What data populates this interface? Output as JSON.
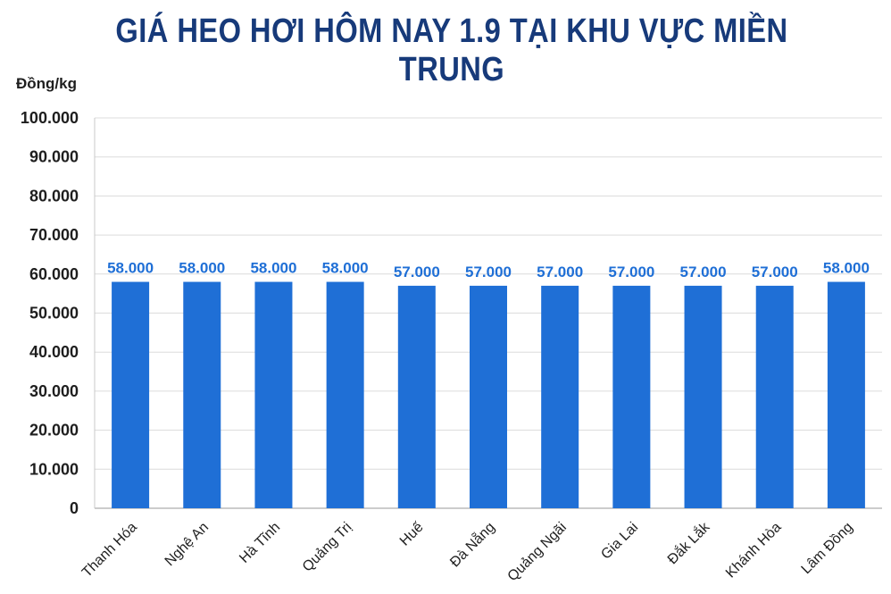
{
  "chart_data": {
    "type": "bar",
    "title": "GIÁ HEO HƠI HÔM NAY 1.9 TẠI KHU VỰC MIỀN TRUNG",
    "ylabel": "Đồng/kg",
    "xlabel": "",
    "ylim": [
      0,
      100000
    ],
    "yticks": [
      0,
      10000,
      20000,
      30000,
      40000,
      50000,
      60000,
      70000,
      80000,
      90000,
      100000
    ],
    "ytick_labels": [
      "0",
      "10.000",
      "20.000",
      "30.000",
      "40.000",
      "50.000",
      "60.000",
      "70.000",
      "80.000",
      "90.000",
      "100.000"
    ],
    "categories": [
      "Thanh Hóa",
      "Nghệ An",
      "Hà Tĩnh",
      "Quảng Trị",
      "Huế",
      "Đà Nẵng",
      "Quảng Ngãi",
      "Gia Lai",
      "Đắk Lắk",
      "Khánh Hòa",
      "Lâm Đồng"
    ],
    "values": [
      58000,
      58000,
      58000,
      58000,
      57000,
      57000,
      57000,
      57000,
      57000,
      57000,
      58000
    ],
    "data_labels": [
      "58.000",
      "58.000",
      "58.000",
      "58.000",
      "57.000",
      "57.000",
      "57.000",
      "57.000",
      "57.000",
      "57.000",
      "58.000"
    ],
    "grid": true,
    "legend": "none",
    "bar_color": "#1f6fd6",
    "title_color": "#173a7a"
  }
}
